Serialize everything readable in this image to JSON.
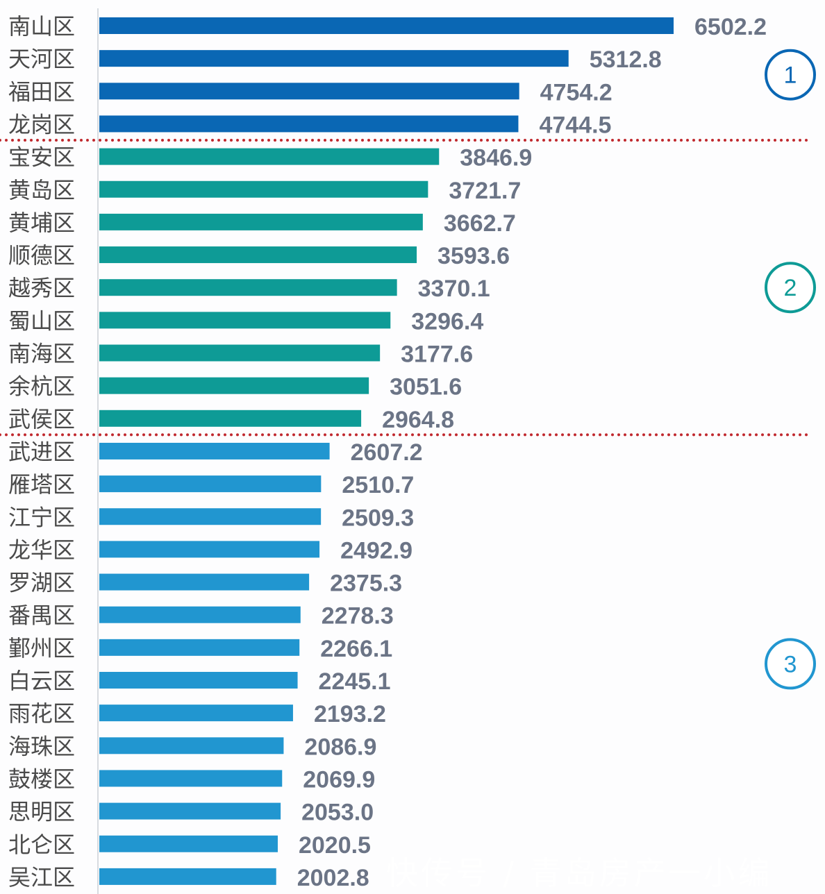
{
  "chart_data": {
    "type": "bar",
    "orientation": "horizontal",
    "categories": [
      "南山区",
      "天河区",
      "福田区",
      "龙岗区",
      "宝安区",
      "黄岛区",
      "黄埔区",
      "顺德区",
      "越秀区",
      "蜀山区",
      "南海区",
      "余杭区",
      "武侯区",
      "武进区",
      "雁塔区",
      "江宁区",
      "龙华区",
      "罗湖区",
      "番禺区",
      "鄞州区",
      "白云区",
      "雨花区",
      "海珠区",
      "鼓楼区",
      "思明区",
      "北仑区",
      "吴江区"
    ],
    "values": [
      6502.2,
      5312.8,
      4754.2,
      4744.5,
      3846.9,
      3721.7,
      3662.7,
      3593.6,
      3370.1,
      3296.4,
      3177.6,
      3051.6,
      2964.8,
      2607.2,
      2510.7,
      2509.3,
      2492.9,
      2375.3,
      2278.3,
      2266.1,
      2245.1,
      2193.2,
      2086.9,
      2069.9,
      2053.0,
      2020.5,
      2002.8
    ],
    "value_labels": [
      "6502.2",
      "5312.8",
      "4754.2",
      "4744.5",
      "3846.9",
      "3721.7",
      "3662.7",
      "3593.6",
      "3370.1",
      "3296.4",
      "3177.6",
      "3051.6",
      "2964.8",
      "2607.2",
      "2510.7",
      "2509.3",
      "2492.9",
      "2375.3",
      "2278.3",
      "2266.1",
      "2245.1",
      "2193.2",
      "2086.9",
      "2069.9",
      "2053.0",
      "2020.5",
      "2002.8"
    ],
    "groups": [
      {
        "label": "1",
        "count": 4,
        "color": "#0a67b4"
      },
      {
        "label": "2",
        "count": 9,
        "color": "#0e9b96"
      },
      {
        "label": "3",
        "count": 14,
        "color": "#2196d0"
      }
    ],
    "separator_color": "#c0282d",
    "xlim": [
      0,
      6502.2
    ],
    "grid": false,
    "legend": "none"
  },
  "watermark": "快传号 / 青岛房产一小编"
}
